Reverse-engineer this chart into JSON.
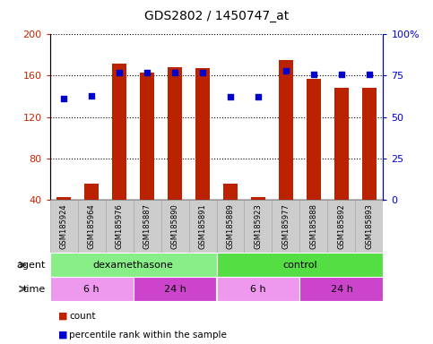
{
  "title": "GDS2802 / 1450747_at",
  "samples": [
    "GSM185924",
    "GSM185964",
    "GSM185976",
    "GSM185887",
    "GSM185890",
    "GSM185891",
    "GSM185889",
    "GSM185923",
    "GSM185977",
    "GSM185888",
    "GSM185892",
    "GSM185893"
  ],
  "counts": [
    42,
    55,
    172,
    163,
    168,
    167,
    55,
    42,
    175,
    157,
    148,
    148
  ],
  "percentile_ranks": [
    61,
    63,
    77,
    77,
    77,
    77,
    62,
    62,
    78,
    76,
    76,
    76
  ],
  "ylim_left": [
    40,
    200
  ],
  "ylim_right": [
    0,
    100
  ],
  "yticks_left": [
    40,
    80,
    120,
    160,
    200
  ],
  "yticks_right": [
    0,
    25,
    50,
    75,
    100
  ],
  "bar_color": "#bb2200",
  "dot_color": "#0000cc",
  "agent_groups": [
    {
      "label": "dexamethasone",
      "start": 0,
      "end": 6,
      "color": "#88ee88"
    },
    {
      "label": "control",
      "start": 6,
      "end": 12,
      "color": "#55dd44"
    }
  ],
  "time_groups": [
    {
      "label": "6 h",
      "start": 0,
      "end": 3,
      "color": "#ee99ee"
    },
    {
      "label": "24 h",
      "start": 3,
      "end": 6,
      "color": "#cc44cc"
    },
    {
      "label": "6 h",
      "start": 6,
      "end": 9,
      "color": "#ee99ee"
    },
    {
      "label": "24 h",
      "start": 9,
      "end": 12,
      "color": "#cc44cc"
    }
  ],
  "label_color_left": "#cc2200",
  "label_color_right": "#0000cc",
  "sample_box_color": "#cccccc",
  "sample_box_edge": "#aaaaaa"
}
